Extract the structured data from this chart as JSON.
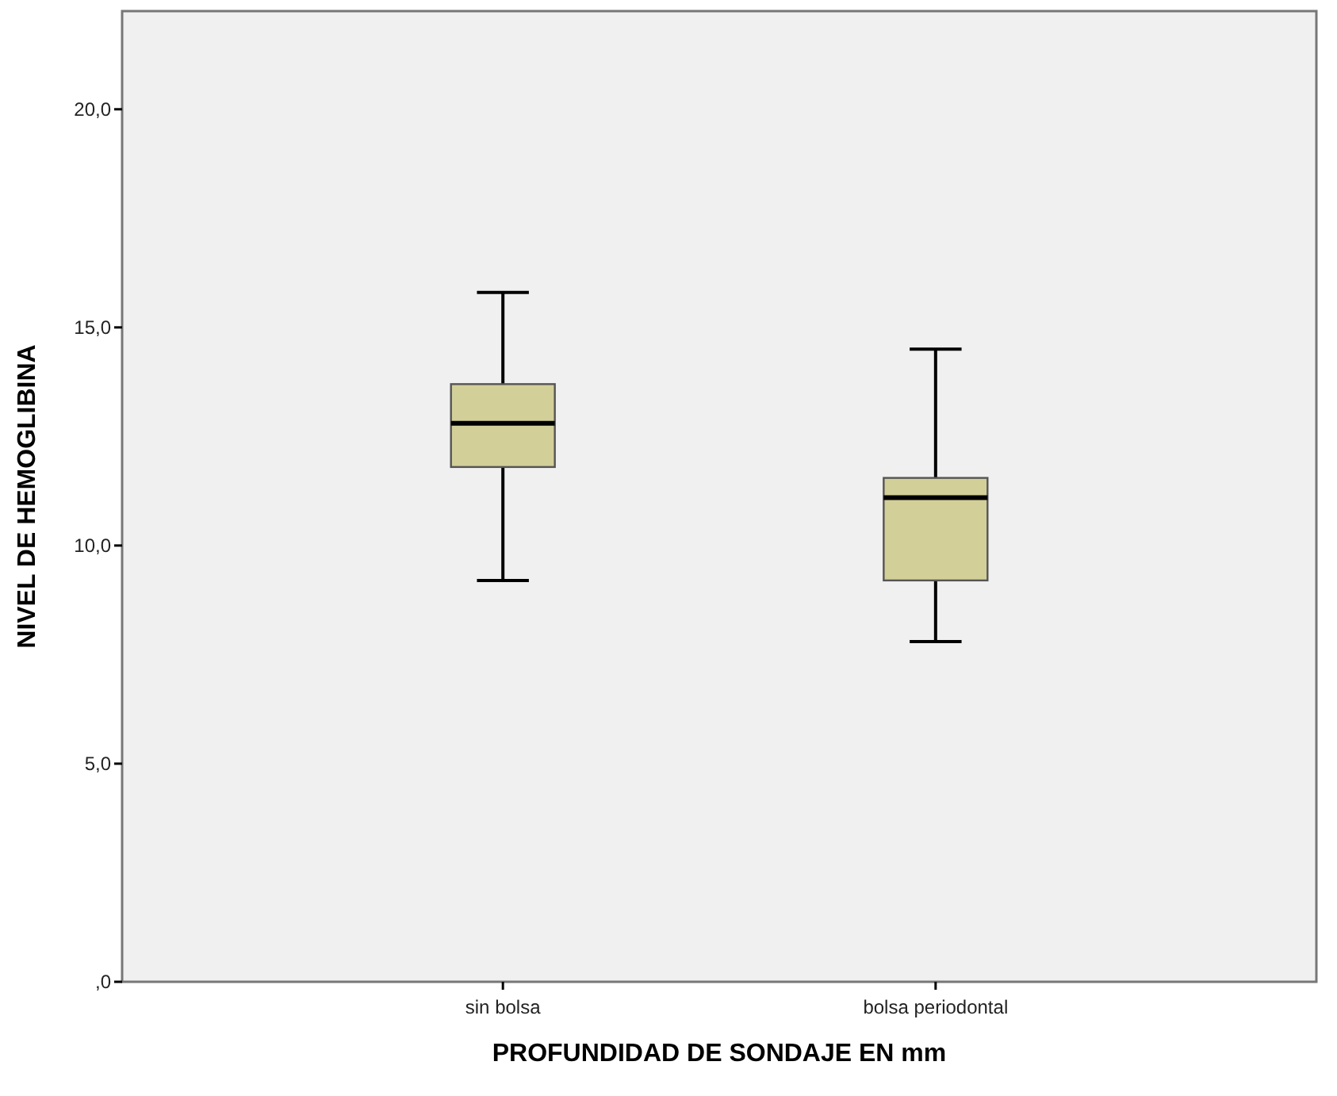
{
  "chart_data": {
    "type": "box",
    "xlabel": "PROFUNDIDAD DE SONDAJE EN mm",
    "ylabel": "NIVEL DE HEMOGLIBINA",
    "categories": [
      "sin bolsa",
      "bolsa periodontal"
    ],
    "color": "#d3cf99",
    "boxes": [
      {
        "low": 9.2,
        "q1": 11.8,
        "median": 12.8,
        "q3": 13.7,
        "high": 15.8
      },
      {
        "low": 7.8,
        "q1": 9.2,
        "median": 11.1,
        "q3": 11.55,
        "high": 14.5
      }
    ],
    "ylim": [
      0,
      22.25
    ],
    "yticks": [
      {
        "value": 0,
        "label": ",0"
      },
      {
        "value": 5,
        "label": "5,0"
      },
      {
        "value": 10,
        "label": "10,0"
      },
      {
        "value": 15,
        "label": "15,0"
      },
      {
        "value": 20,
        "label": "20,0"
      }
    ],
    "grid": false
  }
}
